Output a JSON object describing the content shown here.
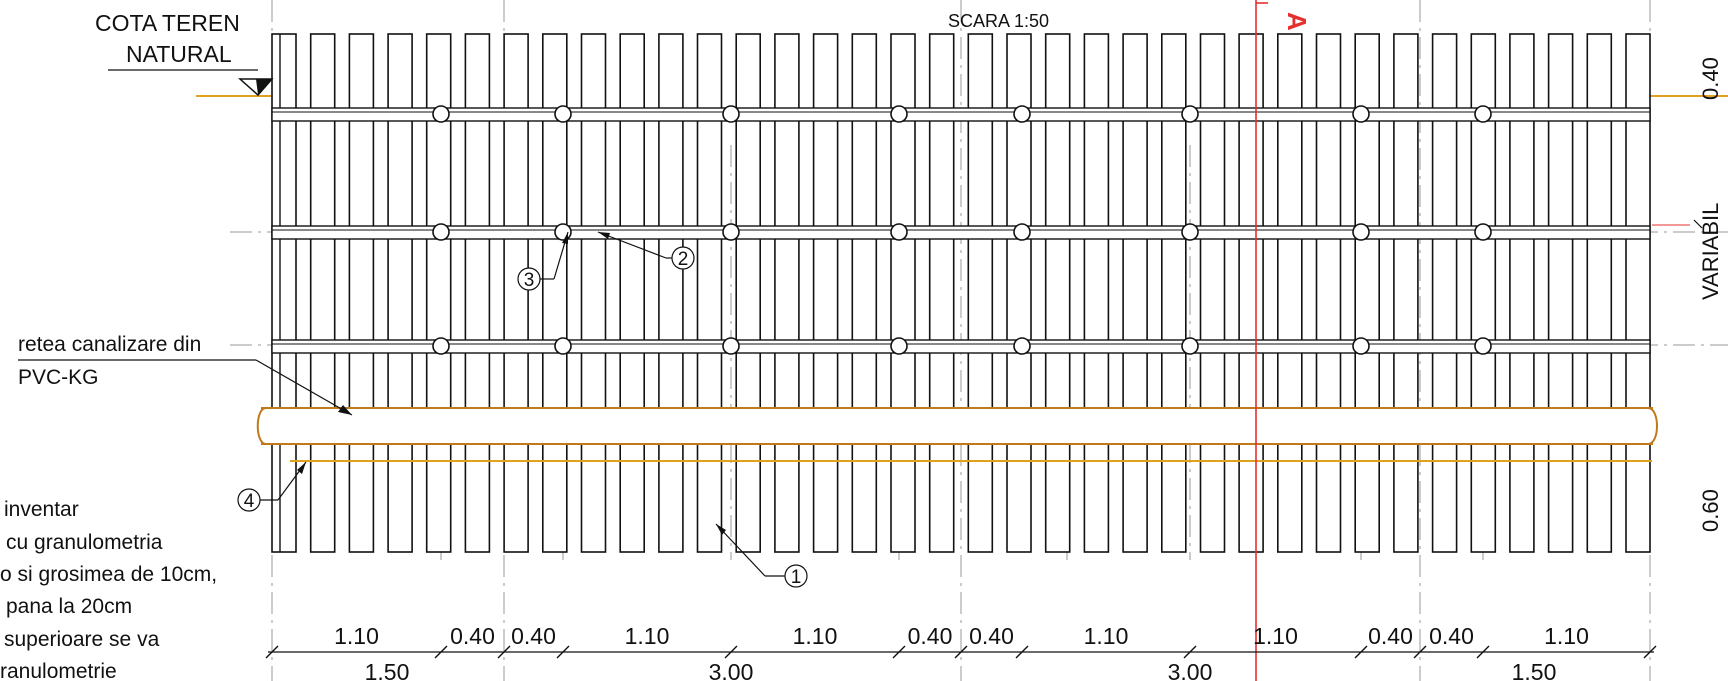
{
  "scale_label": "SCARA 1:50",
  "ground_label": {
    "line1": "COTA TEREN",
    "line2": "NATURAL"
  },
  "pipe_label": {
    "line1": "retea canalizare  din",
    "line2": "PVC-KG"
  },
  "section_marker": "A",
  "side_labels": {
    "top": "0.40",
    "middle": "VARIABIL",
    "bottom": "0.60"
  },
  "bedding_note": [
    "inventar",
    "cu granulometria",
    "o si grosimea de 10cm,",
    "pana la 20cm",
    "superioare se va",
    "ranulometrie"
  ],
  "callouts": [
    "1",
    "2",
    "3",
    "4"
  ],
  "dims_top": [
    "1.10",
    "0.40",
    "0.40",
    "1.10",
    "1.10",
    "0.40",
    "0.40",
    "1.10",
    "1.10",
    "0.40",
    "0.40",
    "1.10"
  ],
  "dims_bottom": [
    "1.50",
    "3.00",
    "3.00",
    "1.50"
  ],
  "colors": {
    "line": "#111111",
    "pipe": "#c07a1a",
    "ground": "#e0a21c",
    "section": "#e53030",
    "axis": "#9a9a9a"
  }
}
